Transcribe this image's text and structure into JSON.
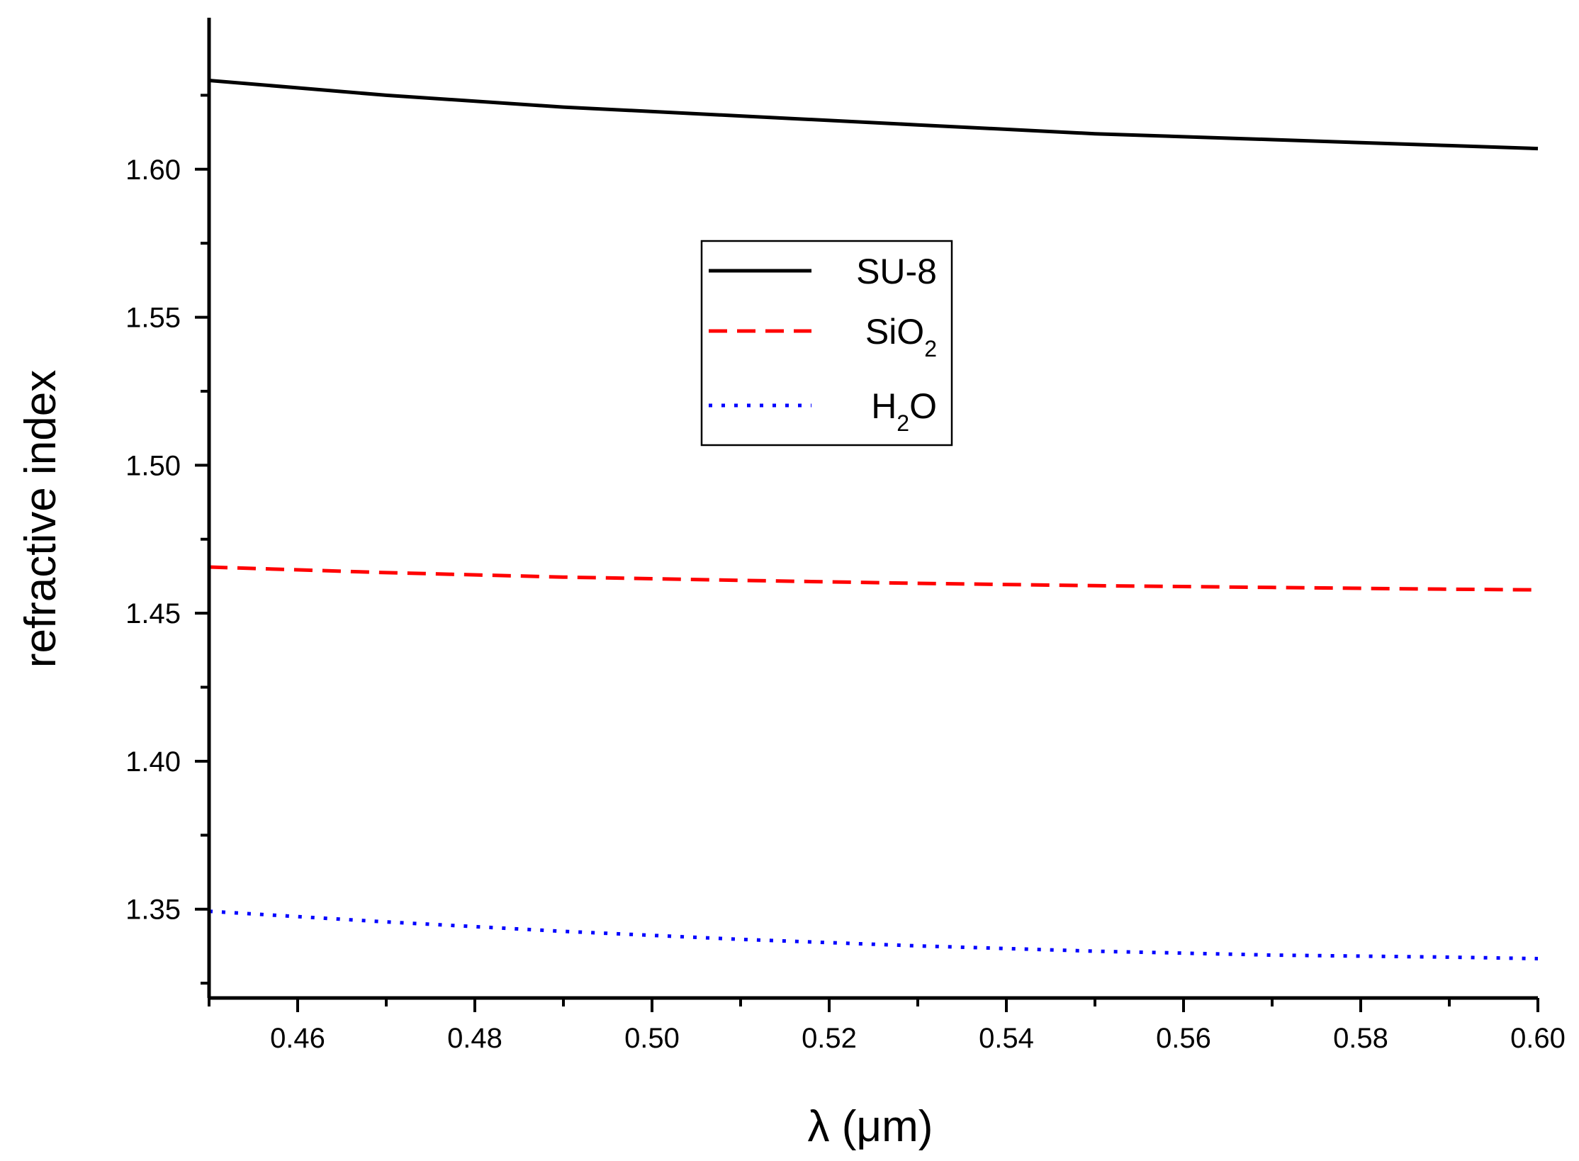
{
  "chart_data": {
    "type": "line",
    "xlabel": "λ (μm)",
    "ylabel": "refractive index",
    "xlim": [
      0.45,
      0.6
    ],
    "ylim": [
      1.32,
      1.65
    ],
    "x_ticks": [
      "0.46",
      "0.48",
      "0.50",
      "0.52",
      "0.54",
      "0.56",
      "0.58",
      "0.60"
    ],
    "y_ticks": [
      "1.35",
      "1.40",
      "1.45",
      "1.50",
      "1.55",
      "1.60"
    ],
    "grid": false,
    "legend_position": "center",
    "x": [
      0.45,
      0.47,
      0.49,
      0.51,
      0.53,
      0.55,
      0.57,
      0.59,
      0.6
    ],
    "series": [
      {
        "name": "SU-8",
        "label_main": "SU-8",
        "label_sub": "",
        "label_tail": "",
        "color": "#000000",
        "style": "solid",
        "values": [
          1.63,
          1.625,
          1.621,
          1.618,
          1.615,
          1.612,
          1.61,
          1.608,
          1.607
        ]
      },
      {
        "name": "SiO2",
        "label_main": "SiO",
        "label_sub": "2",
        "label_tail": "",
        "color": "#ff0000",
        "style": "dashed",
        "values": [
          1.4656,
          1.4637,
          1.4622,
          1.4611,
          1.4601,
          1.4593,
          1.4587,
          1.4581,
          1.4579
        ]
      },
      {
        "name": "H2O",
        "label_main": "H",
        "label_sub": "2",
        "label_tail": "O",
        "color": "#0000ff",
        "style": "dotted",
        "values": [
          1.3493,
          1.3457,
          1.3425,
          1.3398,
          1.3376,
          1.3358,
          1.3345,
          1.3338,
          1.3333
        ]
      }
    ]
  }
}
